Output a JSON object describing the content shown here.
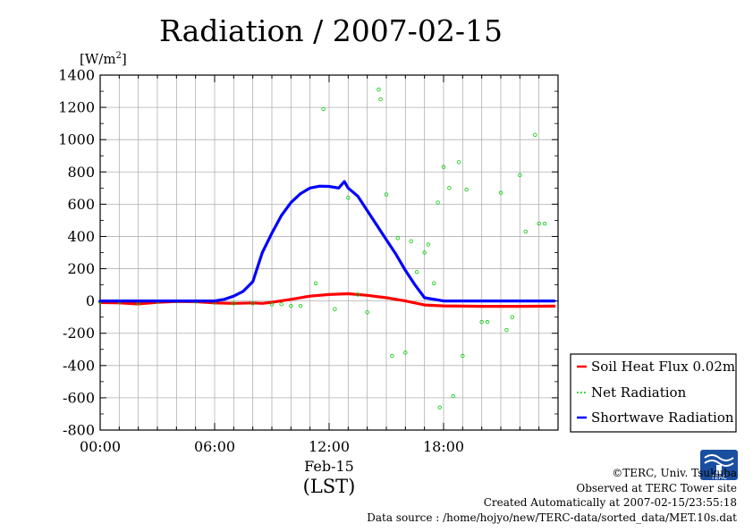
{
  "chart_data": {
    "type": "line",
    "title": "Radiation / 2007-02-15",
    "ylabel": "[W/m",
    "ylabel_sup": "2",
    "ylabel_close": "]",
    "ylim": [
      -800,
      1400
    ],
    "yticks": [
      -800,
      -600,
      -400,
      -200,
      0,
      200,
      400,
      600,
      800,
      1000,
      1200,
      1400
    ],
    "xlim": [
      0,
      24
    ],
    "xticks": [
      {
        "hour": 0,
        "label": "00:00"
      },
      {
        "hour": 6,
        "label": "06:00"
      },
      {
        "hour": 12,
        "label": "12:00"
      },
      {
        "hour": 18,
        "label": "18:00"
      }
    ],
    "date_label": "Feb-15",
    "xlabel": "(LST)",
    "grid": true,
    "legend_position": "right",
    "series": [
      {
        "name": "Soil Heat Flux 0.02m",
        "color": "#ff0000",
        "style": "line",
        "x": [
          0,
          1,
          2,
          3,
          4,
          5,
          6,
          7,
          8,
          8.5,
          9,
          10,
          11,
          12,
          13,
          14,
          15,
          16,
          17,
          18,
          20,
          22,
          23.8
        ],
        "values": [
          -10,
          -12,
          -18,
          -8,
          -3,
          -4,
          -12,
          -15,
          -12,
          -15,
          -8,
          10,
          30,
          40,
          45,
          35,
          20,
          0,
          -25,
          -30,
          -33,
          -33,
          -32
        ]
      },
      {
        "name": "Net Radiation",
        "color": "#00cc00",
        "style": "points",
        "x": [
          0,
          1,
          2,
          3,
          4,
          5,
          6,
          7,
          8,
          9,
          9.5,
          10,
          10.5,
          11.3,
          11.7,
          12.3,
          13,
          13.5,
          14,
          14.6,
          14.7,
          15,
          15.3,
          15.6,
          16,
          16.3,
          16.6,
          17,
          17.2,
          17.5,
          17.7,
          17.8,
          18,
          18.3,
          18.5,
          18.8,
          19,
          19.2,
          20,
          20.3,
          21,
          21.3,
          21.6,
          22,
          22.3,
          22.8,
          23,
          23.3
        ],
        "values": [
          -5,
          -8,
          -12,
          -5,
          -2,
          -3,
          -10,
          -15,
          -15,
          -20,
          -20,
          -30,
          -30,
          110,
          1190,
          -50,
          640,
          40,
          -70,
          1310,
          1250,
          660,
          -340,
          390,
          -320,
          370,
          180,
          300,
          350,
          110,
          610,
          -660,
          830,
          700,
          -590,
          860,
          -340,
          690,
          -130,
          -130,
          670,
          -180,
          -100,
          780,
          430,
          1030,
          480,
          480
        ]
      },
      {
        "name": "Shortwave Radiation",
        "color": "#0000ff",
        "style": "line",
        "x": [
          0,
          2,
          4,
          6,
          6.5,
          7,
          7.5,
          8,
          8.5,
          9,
          9.5,
          10,
          10.5,
          11,
          11.5,
          12,
          12.5,
          12.8,
          13,
          13.5,
          14,
          14.5,
          15,
          15.5,
          16,
          16.5,
          17,
          18,
          20,
          22,
          23.8
        ],
        "values": [
          0,
          0,
          0,
          0,
          10,
          30,
          60,
          120,
          300,
          420,
          530,
          610,
          665,
          700,
          712,
          710,
          700,
          740,
          700,
          650,
          560,
          470,
          380,
          290,
          190,
          100,
          20,
          0,
          0,
          0,
          0
        ]
      }
    ]
  },
  "footer": {
    "copyright": "©TERC, Univ. Tsukuba",
    "observed": "Observed at TERC Tower site",
    "created": "Created Automatically at 2007-02-15/23:55:18",
    "source": "Data source : /home/hojyo/new/TERC-data/sorted_data/MET.10s.dat",
    "logo_text": "TERC"
  }
}
